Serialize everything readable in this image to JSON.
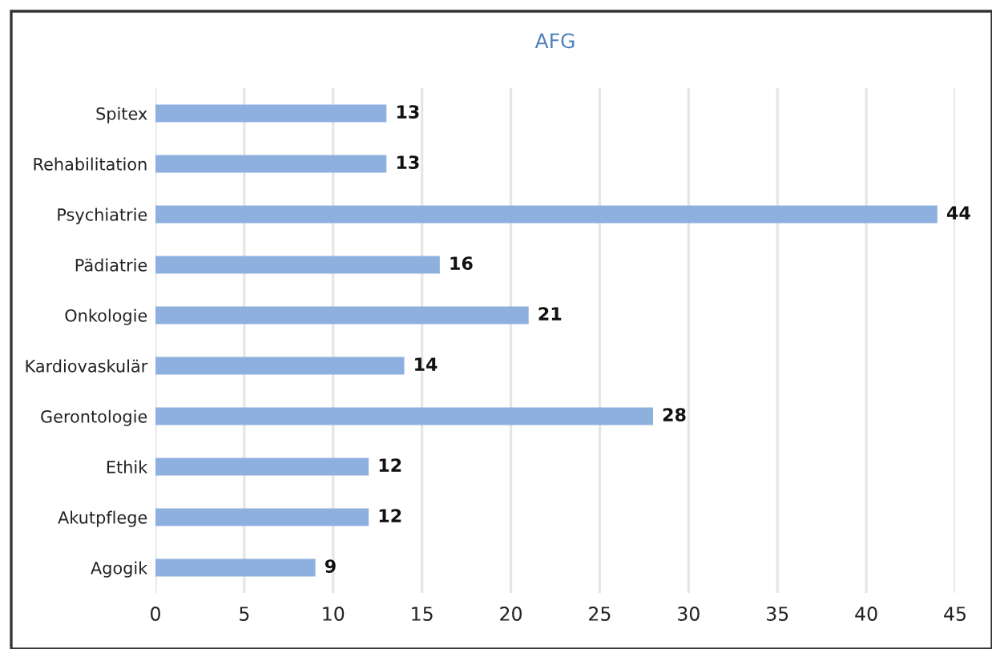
{
  "chart_data": {
    "type": "bar",
    "orientation": "horizontal",
    "title": "AFG",
    "categories": [
      "Spitex",
      "Rehabilitation",
      "Psychiatrie",
      "Pädiatrie",
      "Onkologie",
      "Kardiovaskulär",
      "Gerontologie",
      "Ethik",
      "Akutpflege",
      "Agogik"
    ],
    "values": [
      13,
      13,
      44,
      16,
      21,
      14,
      28,
      12,
      12,
      9
    ],
    "color": "#8eb0df",
    "xlim": [
      0,
      45
    ],
    "xticks": [
      0,
      5,
      10,
      15,
      20,
      25,
      30,
      35,
      40,
      45
    ],
    "grid": "x",
    "data_labels": true
  }
}
